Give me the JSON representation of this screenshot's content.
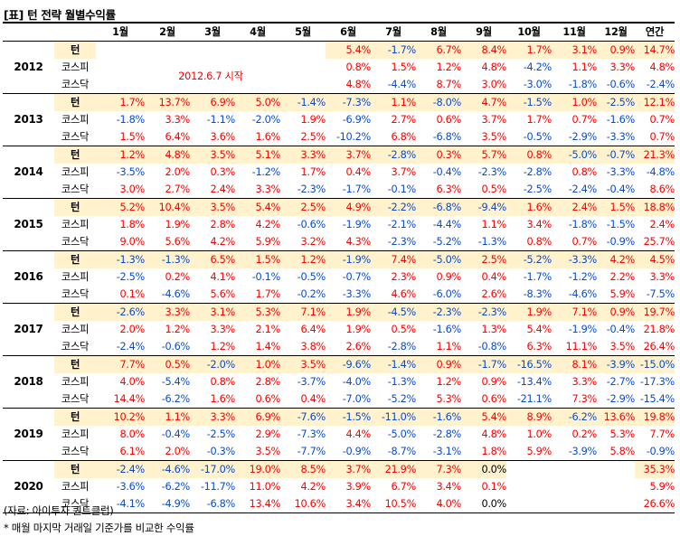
{
  "title": "[표] 턴 전략 월별수익률",
  "header": {
    "months": [
      "1월",
      "2월",
      "3월",
      "4월",
      "5월",
      "6월",
      "7월",
      "8월",
      "9월",
      "10월",
      "11월",
      "12월"
    ],
    "annual": "연간"
  },
  "row_labels": {
    "turn": "턴",
    "kospi": "코스피",
    "kosdaq": "코스닥"
  },
  "note_2012": "2012.6.7 시작",
  "years": [
    {
      "year": "2012",
      "turn": [
        "",
        "",
        "",
        "",
        "",
        "5.4%",
        "-1.7%",
        "6.7%",
        "8.4%",
        "1.7%",
        "3.1%",
        "0.9%",
        "14.7%"
      ],
      "kospi": [
        "",
        "",
        "",
        "",
        "",
        "0.8%",
        "1.5%",
        "1.2%",
        "4.8%",
        "-4.2%",
        "1.1%",
        "3.3%",
        "4.8%"
      ],
      "kosdaq": [
        "",
        "",
        "",
        "",
        "",
        "4.8%",
        "-4.4%",
        "8.7%",
        "3.0%",
        "-3.0%",
        "-1.8%",
        "-0.6%",
        "-2.4%"
      ]
    },
    {
      "year": "2013",
      "turn": [
        "1.7%",
        "13.7%",
        "6.9%",
        "5.0%",
        "-1.4%",
        "-7.3%",
        "1.1%",
        "-8.0%",
        "4.7%",
        "-1.5%",
        "1.0%",
        "-2.5%",
        "12.1%"
      ],
      "kospi": [
        "-1.8%",
        "3.3%",
        "-1.1%",
        "-2.0%",
        "1.9%",
        "-6.9%",
        "2.7%",
        "0.6%",
        "3.7%",
        "1.7%",
        "0.7%",
        "-1.6%",
        "0.7%"
      ],
      "kosdaq": [
        "1.5%",
        "6.4%",
        "3.6%",
        "1.6%",
        "2.5%",
        "-10.2%",
        "6.8%",
        "-6.8%",
        "3.5%",
        "-0.5%",
        "-2.9%",
        "-3.3%",
        "0.7%"
      ]
    },
    {
      "year": "2014",
      "turn": [
        "1.2%",
        "4.8%",
        "3.5%",
        "5.1%",
        "3.3%",
        "3.7%",
        "-2.8%",
        "0.3%",
        "5.7%",
        "0.8%",
        "-5.0%",
        "-0.7%",
        "21.3%"
      ],
      "kospi": [
        "-3.5%",
        "2.0%",
        "0.3%",
        "-1.2%",
        "1.7%",
        "0.4%",
        "3.7%",
        "-0.4%",
        "-2.3%",
        "-2.8%",
        "0.8%",
        "-3.3%",
        "-4.8%"
      ],
      "kosdaq": [
        "3.0%",
        "2.7%",
        "2.4%",
        "3.3%",
        "-2.3%",
        "-1.7%",
        "-0.1%",
        "6.3%",
        "0.5%",
        "-2.5%",
        "-2.4%",
        "-0.4%",
        "8.6%"
      ]
    },
    {
      "year": "2015",
      "turn": [
        "5.2%",
        "10.4%",
        "3.5%",
        "5.4%",
        "2.5%",
        "4.9%",
        "-2.2%",
        "-6.8%",
        "-9.4%",
        "1.6%",
        "2.4%",
        "1.5%",
        "18.8%"
      ],
      "kospi": [
        "1.8%",
        "1.9%",
        "2.8%",
        "4.2%",
        "-0.6%",
        "-1.9%",
        "-2.1%",
        "-4.4%",
        "1.1%",
        "3.4%",
        "-1.8%",
        "-1.5%",
        "2.4%"
      ],
      "kosdaq": [
        "9.0%",
        "5.6%",
        "4.2%",
        "5.9%",
        "3.2%",
        "4.3%",
        "-2.3%",
        "-5.2%",
        "-1.3%",
        "0.8%",
        "0.7%",
        "-0.9%",
        "25.7%"
      ]
    },
    {
      "year": "2016",
      "turn": [
        "-1.3%",
        "-1.3%",
        "6.5%",
        "1.5%",
        "1.2%",
        "-1.9%",
        "7.4%",
        "-5.0%",
        "2.5%",
        "-5.2%",
        "-3.3%",
        "4.2%",
        "4.5%"
      ],
      "kospi": [
        "-2.5%",
        "0.2%",
        "4.1%",
        "-0.1%",
        "-0.5%",
        "-0.7%",
        "2.3%",
        "0.9%",
        "0.4%",
        "-1.7%",
        "-1.2%",
        "2.2%",
        "3.3%"
      ],
      "kosdaq": [
        "0.1%",
        "-4.6%",
        "5.6%",
        "1.7%",
        "-0.2%",
        "-3.3%",
        "4.6%",
        "-6.0%",
        "2.6%",
        "-8.3%",
        "-4.6%",
        "5.9%",
        "-7.5%"
      ]
    },
    {
      "year": "2017",
      "turn": [
        "-2.6%",
        "3.3%",
        "3.1%",
        "5.3%",
        "7.1%",
        "1.9%",
        "-4.5%",
        "-2.3%",
        "-2.3%",
        "1.9%",
        "7.1%",
        "0.9%",
        "19.7%"
      ],
      "kospi": [
        "2.0%",
        "1.2%",
        "3.3%",
        "2.1%",
        "6.4%",
        "1.9%",
        "0.5%",
        "-1.6%",
        "1.3%",
        "5.4%",
        "-1.9%",
        "-0.4%",
        "21.8%"
      ],
      "kosdaq": [
        "-2.4%",
        "-0.6%",
        "1.2%",
        "1.4%",
        "3.8%",
        "2.6%",
        "-2.8%",
        "1.1%",
        "-0.8%",
        "6.3%",
        "11.1%",
        "3.5%",
        "26.4%"
      ]
    },
    {
      "year": "2018",
      "turn": [
        "7.7%",
        "0.5%",
        "-2.0%",
        "1.0%",
        "3.5%",
        "-9.6%",
        "-1.4%",
        "0.9%",
        "-1.7%",
        "-16.5%",
        "8.1%",
        "-3.9%",
        "-15.0%"
      ],
      "kospi": [
        "4.0%",
        "-5.4%",
        "0.8%",
        "2.8%",
        "-3.7%",
        "-4.0%",
        "-1.3%",
        "1.2%",
        "0.9%",
        "-13.4%",
        "3.3%",
        "-2.7%",
        "-17.3%"
      ],
      "kosdaq": [
        "14.4%",
        "-6.2%",
        "1.6%",
        "0.6%",
        "0.4%",
        "-7.0%",
        "-5.2%",
        "5.3%",
        "0.6%",
        "-21.1%",
        "7.3%",
        "-2.9%",
        "-15.4%"
      ]
    },
    {
      "year": "2019",
      "turn": [
        "10.2%",
        "1.1%",
        "3.3%",
        "6.9%",
        "-7.6%",
        "-1.5%",
        "-11.0%",
        "-1.6%",
        "5.4%",
        "8.9%",
        "-6.2%",
        "13.6%",
        "19.8%"
      ],
      "kospi": [
        "8.0%",
        "-0.4%",
        "-2.5%",
        "2.9%",
        "-7.3%",
        "4.4%",
        "-5.0%",
        "-2.8%",
        "4.8%",
        "1.0%",
        "0.2%",
        "5.3%",
        "7.7%"
      ],
      "kosdaq": [
        "6.1%",
        "2.0%",
        "-0.3%",
        "3.5%",
        "-7.7%",
        "-0.9%",
        "-8.7%",
        "-3.1%",
        "1.8%",
        "5.9%",
        "-3.9%",
        "5.8%",
        "-0.9%"
      ]
    },
    {
      "year": "2020",
      "turn": [
        "-2.4%",
        "-4.6%",
        "-17.0%",
        "19.0%",
        "8.5%",
        "3.7%",
        "21.9%",
        "7.3%",
        "0.0%",
        "",
        "",
        "",
        "35.3%"
      ],
      "kospi": [
        "-3.6%",
        "-6.2%",
        "-11.7%",
        "11.0%",
        "4.2%",
        "3.9%",
        "6.7%",
        "3.4%",
        "0.1%",
        "",
        "",
        "",
        "5.9%"
      ],
      "kosdaq": [
        "-4.1%",
        "-4.9%",
        "-6.8%",
        "13.4%",
        "10.6%",
        "3.4%",
        "10.5%",
        "4.0%",
        "0.0%",
        "",
        "",
        "",
        "26.6%"
      ]
    }
  ],
  "footnotes": [
    "(자료: 아이투자 퀀트클럽)",
    "* 매월 마지막 거래일 기준가를 비교한 수익률"
  ],
  "colors": {
    "positive": "#ff0000",
    "negative": "#0b4ccf",
    "turn_highlight": "#fff2cc"
  }
}
